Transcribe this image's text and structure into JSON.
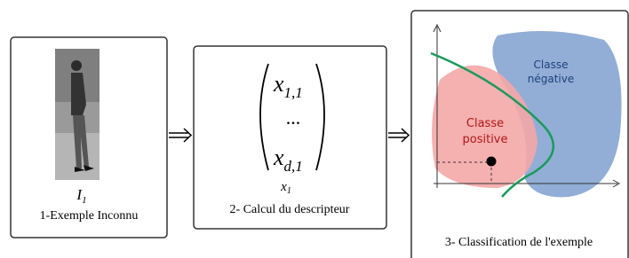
{
  "step1": {
    "symbol": {
      "base": "I",
      "sub": "1"
    },
    "label": "1-Exemple Inconnu"
  },
  "step2": {
    "matrix": {
      "top": {
        "base": "x",
        "sub": "1,1"
      },
      "middle": "...",
      "bottom": {
        "base": "x",
        "sub": "d,1"
      }
    },
    "symbol": {
      "base": "x",
      "sub": "1"
    },
    "label": "2- Calcul du descripteur"
  },
  "step3": {
    "negative": {
      "line1": "Classe",
      "line2": "négative"
    },
    "positive": {
      "line1": "Classe",
      "line2": "positive"
    },
    "label": "3- Classification de l'exemple"
  }
}
